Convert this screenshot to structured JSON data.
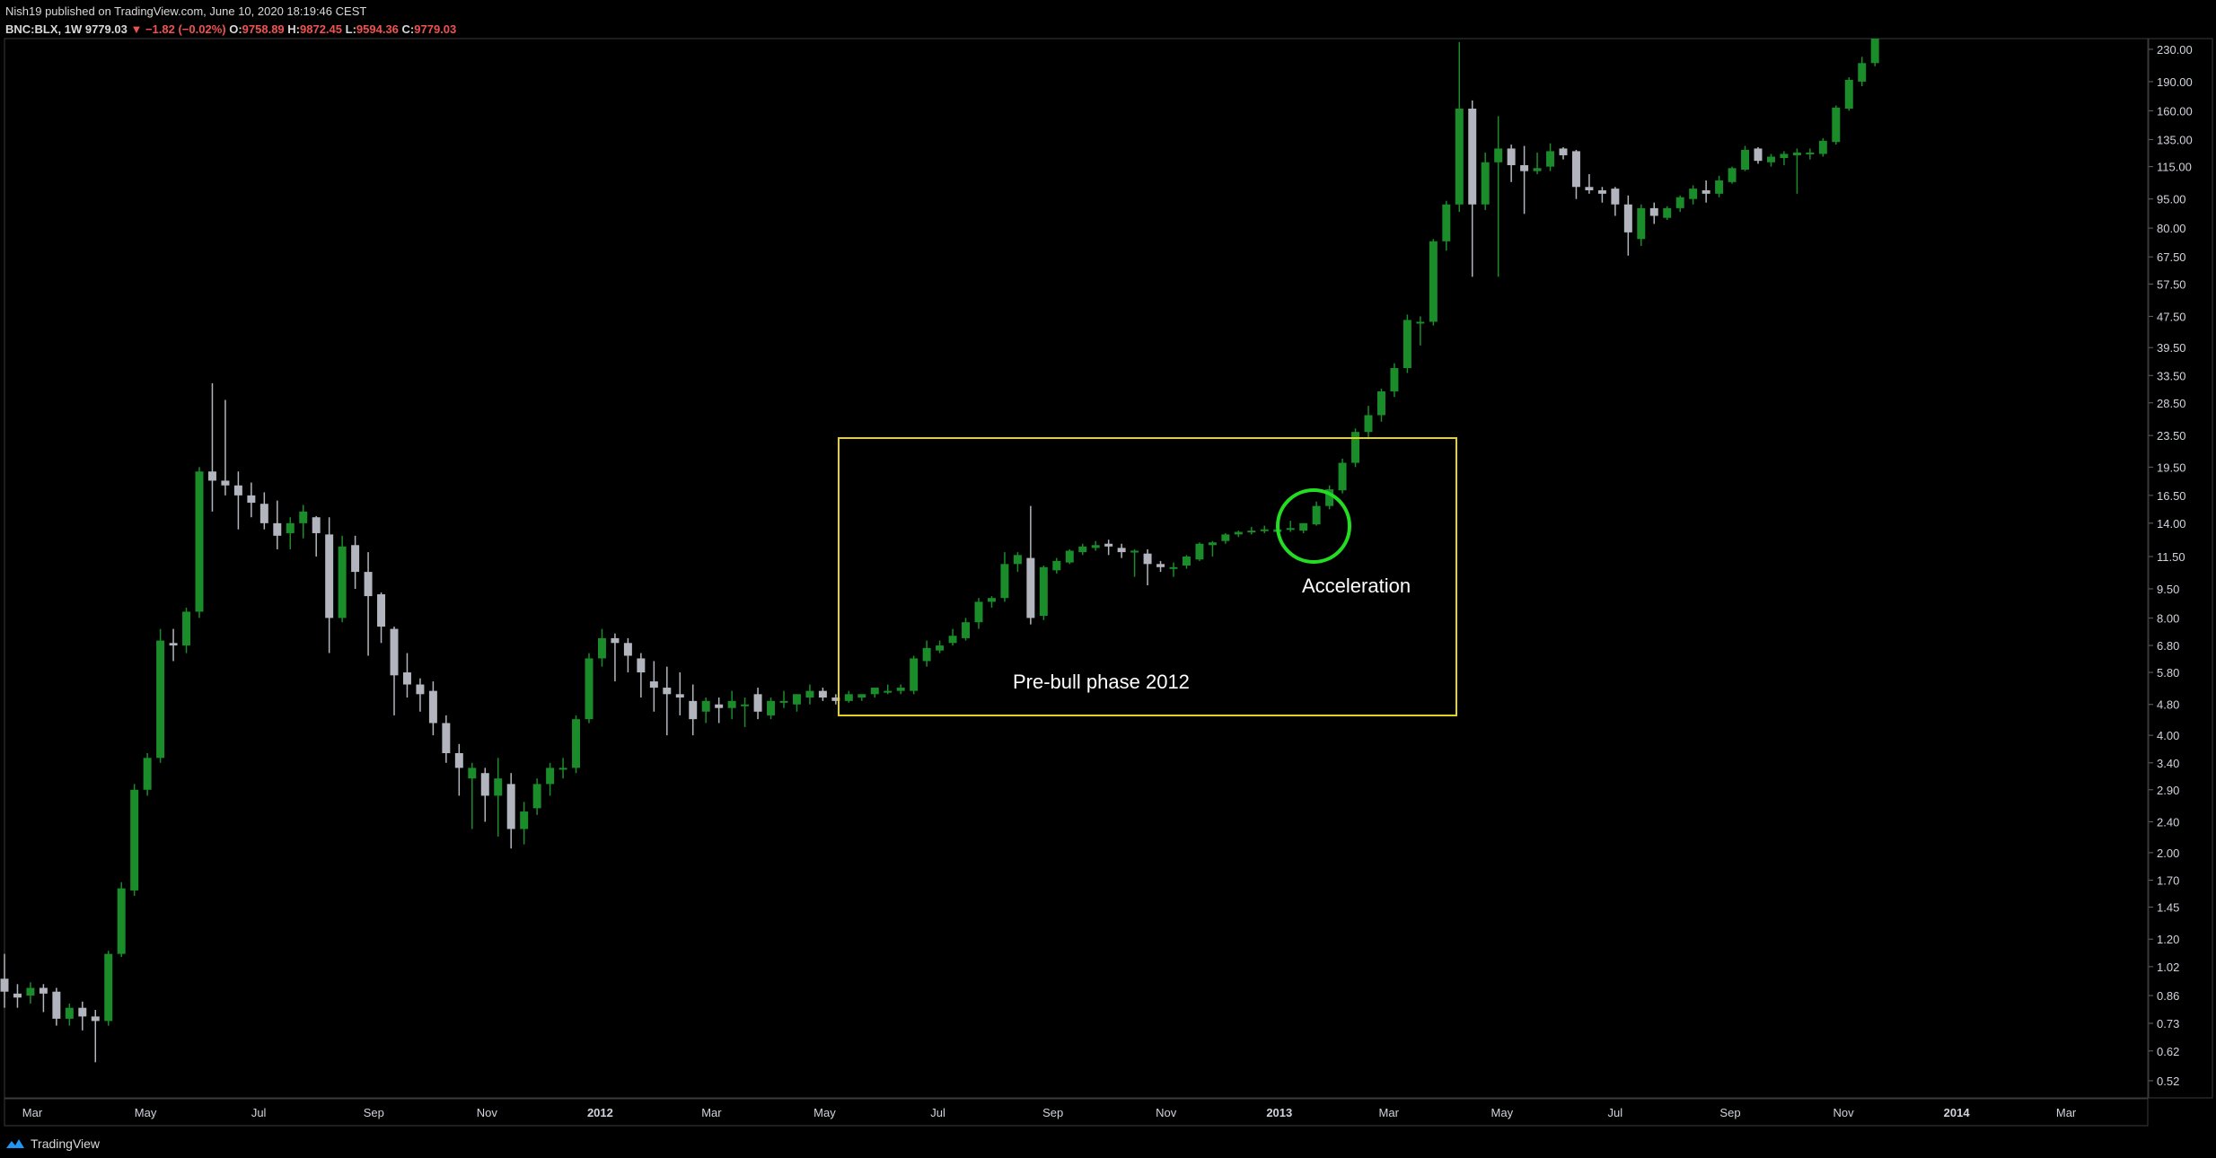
{
  "header": {
    "published_line": "Nish19 published on TradingView.com, June 10, 2020 18:19:46 CEST",
    "symbol": "BNC:BLX, 1W",
    "last": "9779.03",
    "change_arrow": "▼",
    "change": "−1.82 (−0.02%)",
    "o_label": "O:",
    "o_value": "9758.89",
    "h_label": "H:",
    "h_value": "9872.45",
    "l_label": "L:",
    "l_value": "9594.36",
    "c_label": "C:",
    "c_value": "9779.03"
  },
  "footer": {
    "brand": "TradingView"
  },
  "colors": {
    "up": "#1a8c2a",
    "down": "#b2b5be",
    "box": "#e6d21c",
    "circle": "#22dd22",
    "background": "#000000"
  },
  "chart_data": {
    "type": "candlestick",
    "scale": "log",
    "ylim": [
      0.47,
      245
    ],
    "xlim": [
      "2011-02-14",
      "2014-04-14"
    ],
    "y_ticks": [
      "230.00",
      "190.00",
      "160.00",
      "135.00",
      "115.00",
      "95.00",
      "80.00",
      "67.50",
      "57.50",
      "47.50",
      "39.50",
      "33.50",
      "28.50",
      "23.50",
      "19.50",
      "16.50",
      "14.00",
      "11.50",
      "9.50",
      "8.00",
      "6.80",
      "5.80",
      "4.80",
      "4.00",
      "3.40",
      "2.90",
      "2.40",
      "2.00",
      "1.70",
      "1.45",
      "1.20",
      "1.02",
      "0.86",
      "0.73",
      "0.62",
      "0.52"
    ],
    "x_ticks": [
      {
        "label": "Mar",
        "date": "2011-03-01"
      },
      {
        "label": "May",
        "date": "2011-05-01"
      },
      {
        "label": "Jul",
        "date": "2011-07-01"
      },
      {
        "label": "Sep",
        "date": "2011-09-01"
      },
      {
        "label": "Nov",
        "date": "2011-11-01"
      },
      {
        "label": "2012",
        "date": "2012-01-01"
      },
      {
        "label": "Mar",
        "date": "2012-03-01"
      },
      {
        "label": "May",
        "date": "2012-05-01"
      },
      {
        "label": "Jul",
        "date": "2012-07-01"
      },
      {
        "label": "Sep",
        "date": "2012-09-01"
      },
      {
        "label": "Nov",
        "date": "2012-11-01"
      },
      {
        "label": "2013",
        "date": "2013-01-01"
      },
      {
        "label": "Mar",
        "date": "2013-03-01"
      },
      {
        "label": "May",
        "date": "2013-05-01"
      },
      {
        "label": "Jul",
        "date": "2013-07-01"
      },
      {
        "label": "Sep",
        "date": "2013-09-01"
      },
      {
        "label": "Nov",
        "date": "2013-11-01"
      },
      {
        "label": "2014",
        "date": "2014-01-01"
      },
      {
        "label": "Mar",
        "date": "2014-03-01"
      }
    ],
    "start_date": "2011-02-14",
    "candles": [
      [
        0.95,
        1.1,
        0.8,
        0.88
      ],
      [
        0.87,
        0.92,
        0.8,
        0.85
      ],
      [
        0.86,
        0.93,
        0.82,
        0.9
      ],
      [
        0.9,
        0.92,
        0.78,
        0.87
      ],
      [
        0.88,
        0.9,
        0.72,
        0.75
      ],
      [
        0.75,
        0.82,
        0.72,
        0.8
      ],
      [
        0.8,
        0.83,
        0.7,
        0.76
      ],
      [
        0.76,
        0.79,
        0.58,
        0.74
      ],
      [
        0.74,
        1.12,
        0.72,
        1.1
      ],
      [
        1.1,
        1.68,
        1.08,
        1.62
      ],
      [
        1.6,
        3.0,
        1.55,
        2.9
      ],
      [
        2.9,
        3.6,
        2.8,
        3.5
      ],
      [
        3.5,
        7.5,
        3.4,
        7.0
      ],
      [
        6.9,
        7.5,
        6.2,
        6.8
      ],
      [
        6.8,
        8.5,
        6.5,
        8.3
      ],
      [
        8.3,
        19.5,
        8.0,
        19.0
      ],
      [
        19.0,
        32.0,
        15.0,
        18.0
      ],
      [
        18.0,
        29.0,
        16.5,
        17.5
      ],
      [
        17.5,
        19.0,
        13.5,
        16.5
      ],
      [
        16.5,
        17.8,
        14.5,
        15.8
      ],
      [
        15.7,
        16.8,
        13.5,
        14.0
      ],
      [
        14.0,
        16.0,
        12.0,
        13.0
      ],
      [
        13.2,
        14.5,
        12.0,
        14.0
      ],
      [
        14.0,
        15.6,
        12.8,
        15.0
      ],
      [
        14.5,
        14.6,
        11.5,
        13.2
      ],
      [
        13.1,
        14.5,
        6.5,
        8.0
      ],
      [
        8.0,
        13.0,
        7.8,
        12.2
      ],
      [
        12.3,
        13.0,
        9.5,
        10.5
      ],
      [
        10.5,
        11.8,
        6.4,
        9.1
      ],
      [
        9.2,
        9.3,
        6.9,
        7.6
      ],
      [
        7.5,
        7.6,
        4.5,
        5.7
      ],
      [
        5.8,
        6.5,
        5.0,
        5.4
      ],
      [
        5.4,
        5.6,
        4.6,
        5.1
      ],
      [
        5.2,
        5.5,
        4.0,
        4.3
      ],
      [
        4.3,
        4.5,
        3.4,
        3.6
      ],
      [
        3.6,
        3.8,
        2.8,
        3.3
      ],
      [
        3.1,
        3.4,
        2.3,
        3.3
      ],
      [
        3.2,
        3.3,
        2.4,
        2.8
      ],
      [
        2.8,
        3.5,
        2.2,
        3.1
      ],
      [
        3.0,
        3.2,
        2.05,
        2.3
      ],
      [
        2.3,
        2.7,
        2.1,
        2.55
      ],
      [
        2.6,
        3.1,
        2.5,
        3.0
      ],
      [
        3.0,
        3.4,
        2.8,
        3.3
      ],
      [
        3.3,
        3.5,
        3.1,
        3.3
      ],
      [
        3.3,
        4.5,
        3.2,
        4.4
      ],
      [
        4.4,
        6.5,
        4.3,
        6.3
      ],
      [
        6.3,
        7.5,
        6.0,
        7.1
      ],
      [
        7.1,
        7.3,
        5.5,
        6.9
      ],
      [
        6.9,
        7.1,
        5.8,
        6.4
      ],
      [
        6.3,
        6.5,
        5.0,
        5.8
      ],
      [
        5.5,
        6.2,
        4.6,
        5.3
      ],
      [
        5.3,
        6.0,
        4.0,
        5.1
      ],
      [
        5.1,
        5.8,
        4.5,
        5.0
      ],
      [
        4.9,
        5.4,
        4.0,
        4.4
      ],
      [
        4.6,
        5.0,
        4.3,
        4.9
      ],
      [
        4.8,
        5.0,
        4.3,
        4.7
      ],
      [
        4.7,
        5.2,
        4.4,
        4.9
      ],
      [
        4.8,
        5.0,
        4.2,
        4.8
      ],
      [
        5.1,
        5.3,
        4.4,
        4.6
      ],
      [
        4.5,
        5.0,
        4.4,
        4.9
      ],
      [
        4.9,
        5.2,
        4.7,
        4.9
      ],
      [
        4.8,
        5.1,
        4.6,
        5.1
      ],
      [
        5.0,
        5.4,
        4.8,
        5.2
      ],
      [
        5.2,
        5.3,
        4.9,
        5.0
      ],
      [
        5.0,
        5.1,
        4.8,
        4.9
      ],
      [
        4.9,
        5.2,
        4.85,
        5.1
      ],
      [
        5.0,
        5.1,
        4.9,
        5.1
      ],
      [
        5.1,
        5.3,
        5.0,
        5.3
      ],
      [
        5.2,
        5.4,
        5.1,
        5.2
      ],
      [
        5.2,
        5.4,
        5.1,
        5.3
      ],
      [
        5.2,
        6.4,
        5.1,
        6.3
      ],
      [
        6.2,
        7.0,
        6.0,
        6.7
      ],
      [
        6.6,
        7.0,
        6.5,
        6.8
      ],
      [
        6.9,
        7.5,
        6.8,
        7.2
      ],
      [
        7.1,
        8.0,
        7.0,
        7.8
      ],
      [
        7.8,
        9.0,
        7.5,
        8.8
      ],
      [
        8.8,
        9.1,
        8.5,
        9.0
      ],
      [
        9.0,
        11.8,
        8.8,
        11.0
      ],
      [
        11.0,
        11.8,
        10.5,
        11.6
      ],
      [
        11.4,
        15.5,
        7.7,
        8.0
      ],
      [
        8.1,
        10.9,
        7.9,
        10.8
      ],
      [
        10.6,
        11.4,
        10.4,
        11.2
      ],
      [
        11.1,
        12.0,
        11.0,
        11.9
      ],
      [
        11.8,
        12.4,
        11.6,
        12.2
      ],
      [
        12.1,
        12.6,
        11.9,
        12.3
      ],
      [
        12.4,
        12.7,
        11.6,
        12.2
      ],
      [
        12.1,
        12.4,
        11.4,
        11.8
      ],
      [
        11.9,
        12.0,
        10.2,
        11.9
      ],
      [
        11.7,
        12.0,
        9.7,
        11.0
      ],
      [
        11.0,
        11.2,
        10.5,
        10.8
      ],
      [
        10.7,
        11.1,
        10.2,
        10.8
      ],
      [
        10.9,
        11.6,
        10.7,
        11.5
      ],
      [
        11.3,
        12.5,
        11.2,
        12.4
      ],
      [
        12.3,
        12.6,
        11.5,
        12.5
      ],
      [
        12.6,
        13.2,
        12.4,
        13.1
      ],
      [
        13.1,
        13.4,
        12.9,
        13.3
      ],
      [
        13.3,
        13.7,
        13.1,
        13.4
      ],
      [
        13.4,
        13.8,
        13.2,
        13.5
      ],
      [
        13.3,
        13.6,
        13.2,
        13.5
      ],
      [
        13.5,
        14.2,
        13.3,
        13.6
      ],
      [
        13.4,
        14.0,
        13.2,
        14.0
      ],
      [
        13.9,
        15.9,
        13.8,
        15.5
      ],
      [
        15.5,
        17.5,
        15.2,
        17.1
      ],
      [
        17.0,
        20.5,
        16.7,
        20.0
      ],
      [
        20.0,
        24.5,
        19.5,
        24.0
      ],
      [
        24.0,
        28.0,
        23.0,
        26.5
      ],
      [
        26.5,
        31.0,
        25.5,
        30.5
      ],
      [
        30.5,
        36.0,
        29.5,
        35.0
      ],
      [
        35.0,
        48.0,
        34.0,
        46.5
      ],
      [
        46.0,
        47.5,
        40.0,
        46.0
      ],
      [
        46.0,
        75.0,
        45.0,
        74.0
      ],
      [
        74.0,
        94.0,
        70.0,
        92.0
      ],
      [
        92.0,
        240.0,
        88.0,
        162.0
      ],
      [
        162.0,
        170.0,
        60.0,
        92.0
      ],
      [
        92.0,
        125.0,
        89.0,
        118.0
      ],
      [
        118.0,
        155.0,
        60.0,
        128.0
      ],
      [
        128.0,
        131.0,
        105.0,
        116.0
      ],
      [
        116.0,
        130.0,
        87.0,
        112.0
      ],
      [
        112.0,
        125.0,
        110.0,
        114.0
      ],
      [
        115.0,
        132.0,
        112.0,
        126.0
      ],
      [
        128.0,
        129.0,
        120.0,
        123.0
      ],
      [
        126.0,
        127.0,
        95.0,
        102.0
      ],
      [
        102.0,
        110.0,
        98.0,
        100.0
      ],
      [
        100.0,
        102.0,
        93.0,
        98.0
      ],
      [
        101.0,
        102.0,
        86.0,
        92.0
      ],
      [
        92.0,
        97.0,
        68.0,
        78.0
      ],
      [
        75.0,
        92.0,
        72.0,
        90.0
      ],
      [
        90.0,
        93.0,
        82.0,
        86.0
      ],
      [
        85.0,
        91.0,
        84.0,
        90.0
      ],
      [
        90.0,
        97.0,
        88.0,
        96.0
      ],
      [
        95.0,
        103.0,
        92.0,
        101.0
      ],
      [
        100.0,
        106.0,
        93.0,
        98.0
      ],
      [
        98.0,
        109.0,
        96.0,
        106.0
      ],
      [
        105.0,
        115.0,
        104.0,
        114.0
      ],
      [
        113.0,
        130.0,
        112.0,
        127.0
      ],
      [
        128.0,
        129.0,
        117.0,
        119.0
      ],
      [
        118.0,
        124.0,
        115.0,
        122.0
      ],
      [
        121.0,
        126.0,
        116.0,
        124.0
      ],
      [
        123.0,
        128.0,
        98.0,
        125.0
      ],
      [
        124.0,
        128.0,
        120.0,
        125.0
      ],
      [
        124.0,
        136.0,
        122.0,
        134.0
      ],
      [
        133.0,
        165.0,
        131.0,
        163.0
      ],
      [
        162.0,
        195.0,
        160.0,
        192.0
      ],
      [
        190.0,
        220.0,
        185.0,
        212.0
      ],
      [
        212.0,
        250.0,
        208.0,
        245.0
      ]
    ],
    "annotations": [
      {
        "text": "Pre-bull phase 2012"
      },
      {
        "text": "Acceleration"
      }
    ]
  }
}
